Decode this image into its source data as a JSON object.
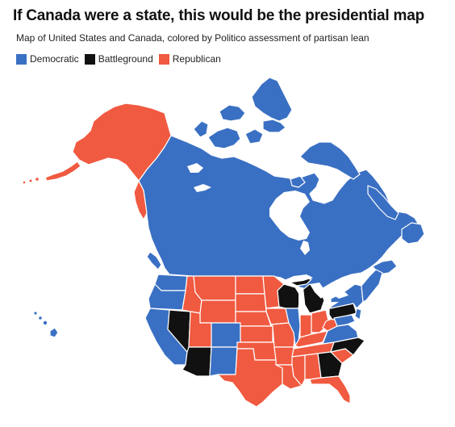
{
  "title": "If Canada were a state, this would be the presidential map",
  "subtitle": "Map of United States and Canada, colored by Politico assessment of partisan lean",
  "legend": [
    {
      "label": "Democratic",
      "color": "#3a70c3"
    },
    {
      "label": "Battleground",
      "color": "#111111"
    },
    {
      "label": "Republican",
      "color": "#f05a40"
    }
  ],
  "colors": {
    "democratic": "#3a70c3",
    "battleground": "#111111",
    "republican": "#f05a40",
    "water": "#ffffff"
  }
}
